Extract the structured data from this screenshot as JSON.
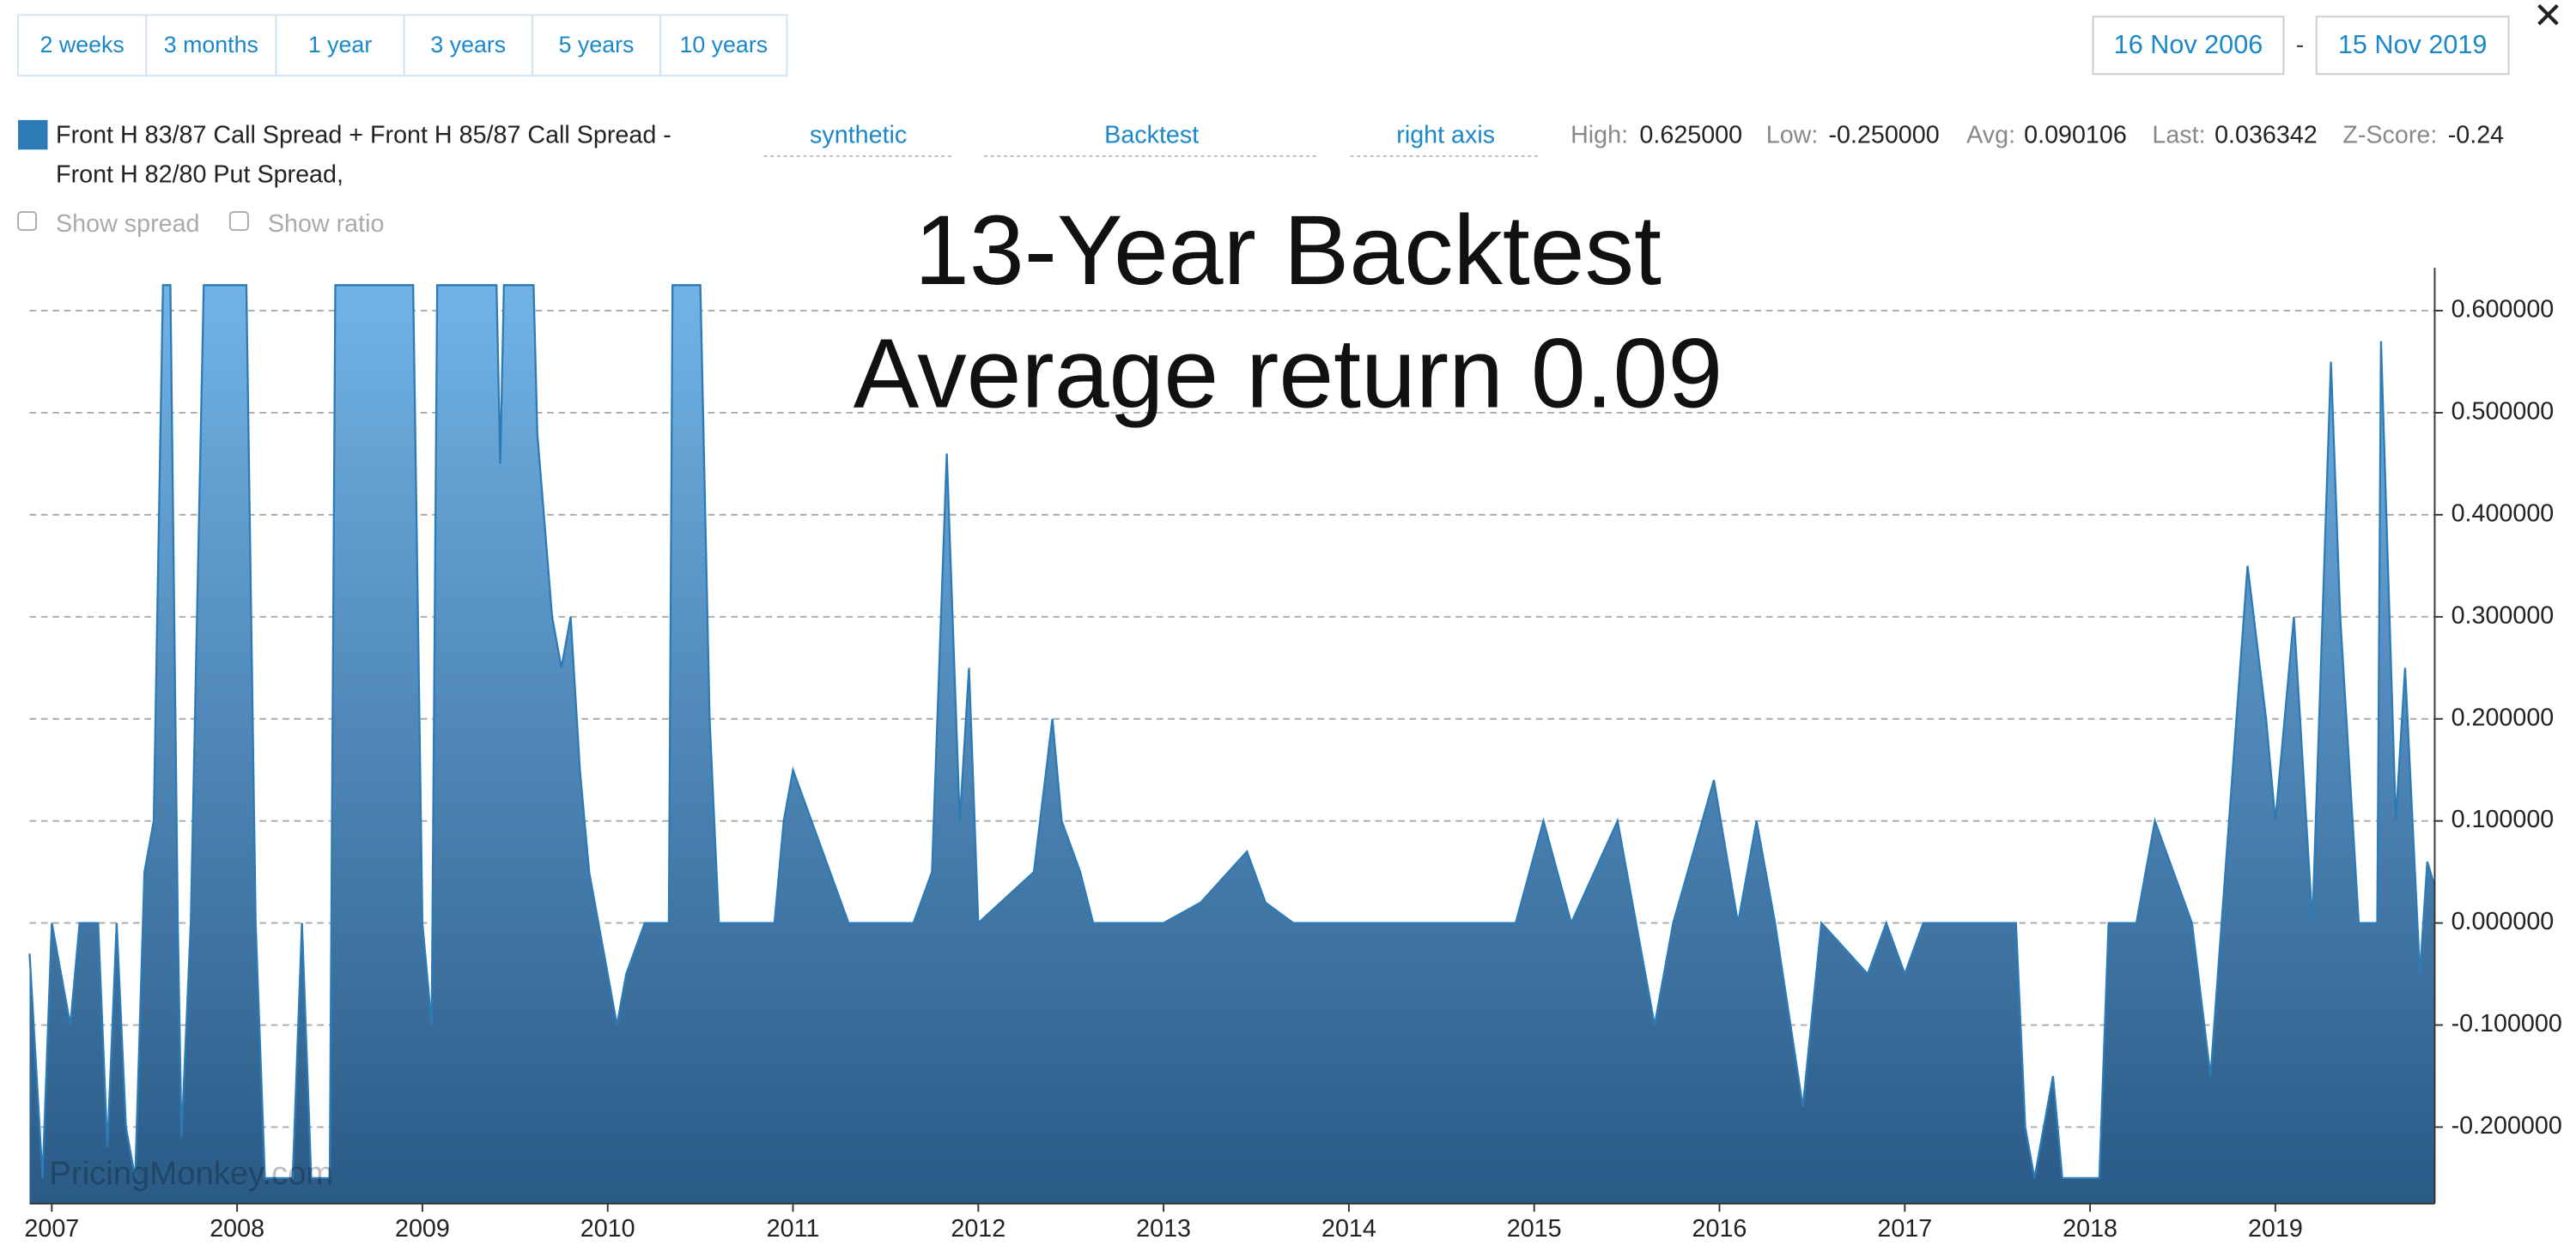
{
  "ui": {
    "range_buttons": [
      "2 weeks",
      "3 months",
      "1 year",
      "3 years",
      "5 years",
      "10 years"
    ],
    "date_from": "16 Nov 2006",
    "date_separator": "-",
    "date_to": "15 Nov 2019",
    "dropdowns": [
      "synthetic",
      "Backtest",
      "right axis"
    ],
    "stats": [
      {
        "label": "High:",
        "value": "0.625000"
      },
      {
        "label": "Low:",
        "value": "-0.250000"
      },
      {
        "label": "Avg:",
        "value": "0.090106"
      },
      {
        "label": "Last:",
        "value": "0.036342"
      },
      {
        "label": "Z-Score:",
        "value": "-0.24"
      }
    ],
    "checkboxes": [
      "Show spread",
      "Show ratio"
    ],
    "watermark": "PricingMonkey.com"
  },
  "chart_data": {
    "type": "area",
    "title": "13-Year Backtest",
    "subtitle": "Average return 0.09",
    "legend": [
      "Front H 83/87 Call Spread + Front H 85/87 Call Spread -",
      "Front H 82/80 Put Spread,"
    ],
    "color": "#2c7bb6",
    "x": [
      2006.88,
      2006.95,
      2007.0,
      2007.1,
      2007.15,
      2007.25,
      2007.3,
      2007.35,
      2007.4,
      2007.45,
      2007.5,
      2007.55,
      2007.6,
      2007.64,
      2007.68,
      2007.7,
      2007.75,
      2007.82,
      2008.05,
      2008.1,
      2008.15,
      2008.3,
      2008.35,
      2008.4,
      2008.5,
      2008.53,
      2008.95,
      2009.0,
      2009.05,
      2009.08,
      2009.4,
      2009.42,
      2009.44,
      2009.6,
      2009.62,
      2009.7,
      2009.75,
      2009.8,
      2009.85,
      2009.9,
      2009.95,
      2010.05,
      2010.1,
      2010.2,
      2010.33,
      2010.35,
      2010.5,
      2010.55,
      2010.6,
      2010.9,
      2010.95,
      2011.0,
      2011.1,
      2011.2,
      2011.3,
      2011.55,
      2011.65,
      2011.75,
      2011.83,
      2011.9,
      2011.95,
      2012.0,
      2012.3,
      2012.4,
      2012.45,
      2012.55,
      2012.62,
      2013.0,
      2013.2,
      2013.45,
      2013.55,
      2013.7,
      2014.9,
      2015.05,
      2015.2,
      2015.45,
      2015.55,
      2015.65,
      2015.75,
      2015.97,
      2016.1,
      2016.2,
      2016.3,
      2016.45,
      2016.55,
      2016.8,
      2016.9,
      2017.0,
      2017.1,
      2017.5,
      2017.6,
      2017.65,
      2017.7,
      2017.8,
      2017.85,
      2018.05,
      2018.1,
      2018.25,
      2018.35,
      2018.45,
      2018.55,
      2018.65,
      2018.75,
      2018.85,
      2018.95,
      2019.0,
      2019.1,
      2019.2,
      2019.3,
      2019.35,
      2019.45,
      2019.55,
      2019.57,
      2019.65,
      2019.7,
      2019.78,
      2019.82,
      2019.86
    ],
    "values": [
      -0.03,
      -0.25,
      0.0,
      -0.1,
      0.0,
      0.0,
      -0.22,
      0.0,
      -0.2,
      -0.25,
      0.05,
      0.1,
      0.625,
      0.625,
      0.0,
      -0.21,
      0.0,
      0.625,
      0.625,
      0.0,
      -0.25,
      -0.25,
      0.0,
      -0.25,
      -0.25,
      0.625,
      0.625,
      0.0,
      -0.1,
      0.625,
      0.625,
      0.45,
      0.625,
      0.625,
      0.48,
      0.3,
      0.25,
      0.3,
      0.15,
      0.05,
      0.0,
      -0.1,
      -0.05,
      0.0,
      0.0,
      0.625,
      0.625,
      0.2,
      0.0,
      0.0,
      0.1,
      0.15,
      0.1,
      0.05,
      0.0,
      0.0,
      0.0,
      0.05,
      0.46,
      0.1,
      0.25,
      0.0,
      0.05,
      0.2,
      0.1,
      0.05,
      0.0,
      0.0,
      0.02,
      0.07,
      0.02,
      0.0,
      0.0,
      0.1,
      0.0,
      0.1,
      0.0,
      -0.1,
      0.0,
      0.14,
      0.0,
      0.1,
      0.0,
      -0.18,
      0.0,
      -0.05,
      0.0,
      -0.05,
      0.0,
      0.0,
      0.0,
      -0.2,
      -0.25,
      -0.15,
      -0.25,
      -0.25,
      0.0,
      0.0,
      0.1,
      0.05,
      0.0,
      -0.15,
      0.1,
      0.35,
      0.2,
      0.1,
      0.3,
      0.0,
      0.55,
      0.3,
      0.0,
      0.0,
      0.57,
      0.1,
      0.25,
      -0.05,
      0.06,
      0.036
    ],
    "xlim": [
      2006.88,
      2019.86
    ],
    "xticks": [
      2007,
      2008,
      2009,
      2010,
      2011,
      2012,
      2013,
      2014,
      2015,
      2016,
      2017,
      2018,
      2019
    ],
    "ylim": [
      -0.275,
      0.642
    ],
    "yticks": [
      {
        "value": -0.2,
        "label": "-0.200000"
      },
      {
        "value": -0.1,
        "label": "-0.100000"
      },
      {
        "value": 0,
        "label": "0.000000"
      },
      {
        "value": 0.1,
        "label": "0.100000"
      },
      {
        "value": 0.2,
        "label": "0.200000"
      },
      {
        "value": 0.3,
        "label": "0.300000"
      },
      {
        "value": 0.4,
        "label": "0.400000"
      },
      {
        "value": 0.5,
        "label": "0.500000"
      },
      {
        "value": 0.6,
        "label": "0.600000"
      }
    ],
    "grid": true
  }
}
